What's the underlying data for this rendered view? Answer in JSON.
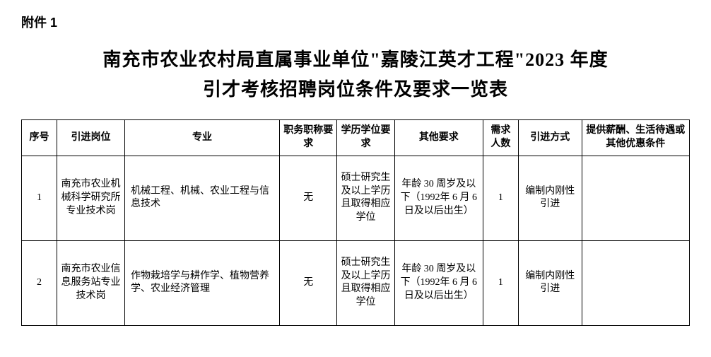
{
  "attachment": "附件 1",
  "title_line1": "南充市农业农村局直属事业单位\"嘉陵江英才工程\"2023 年度",
  "title_line2": "引才考核招聘岗位条件及要求一览表",
  "table": {
    "headers": {
      "seq": "序号",
      "post": "引进岗位",
      "major": "专业",
      "title_req": "职务职称要求",
      "edu_req": "学历学位要求",
      "other_req": "其他要求",
      "num": "需求人数",
      "method": "引进方式",
      "benefit": "提供薪酬、生活待遇或其他优惠条件"
    },
    "rows": [
      {
        "seq": "1",
        "post": "南充市农业机械科学研究所专业技术岗",
        "major": "机械工程、机械、农业工程与信息技术",
        "title_req": "无",
        "edu_req": "硕士研究生及以上学历且取得相应学位",
        "other_req": "年龄 30 周岁及以下（1992年 6 月 6 日及以后出生）",
        "num": "1",
        "method": "编制内刚性引进",
        "benefit": ""
      },
      {
        "seq": "2",
        "post": "南充市农业信息服务站专业技术岗",
        "major": "作物栽培学与耕作学、植物营养学、农业经济管理",
        "title_req": "无",
        "edu_req": "硕士研究生及以上学历且取得相应学位",
        "other_req": "年龄 30 周岁及以下（1992年 6 月 6 日及以后出生）",
        "num": "1",
        "method": "编制内刚性引进",
        "benefit": ""
      }
    ]
  }
}
